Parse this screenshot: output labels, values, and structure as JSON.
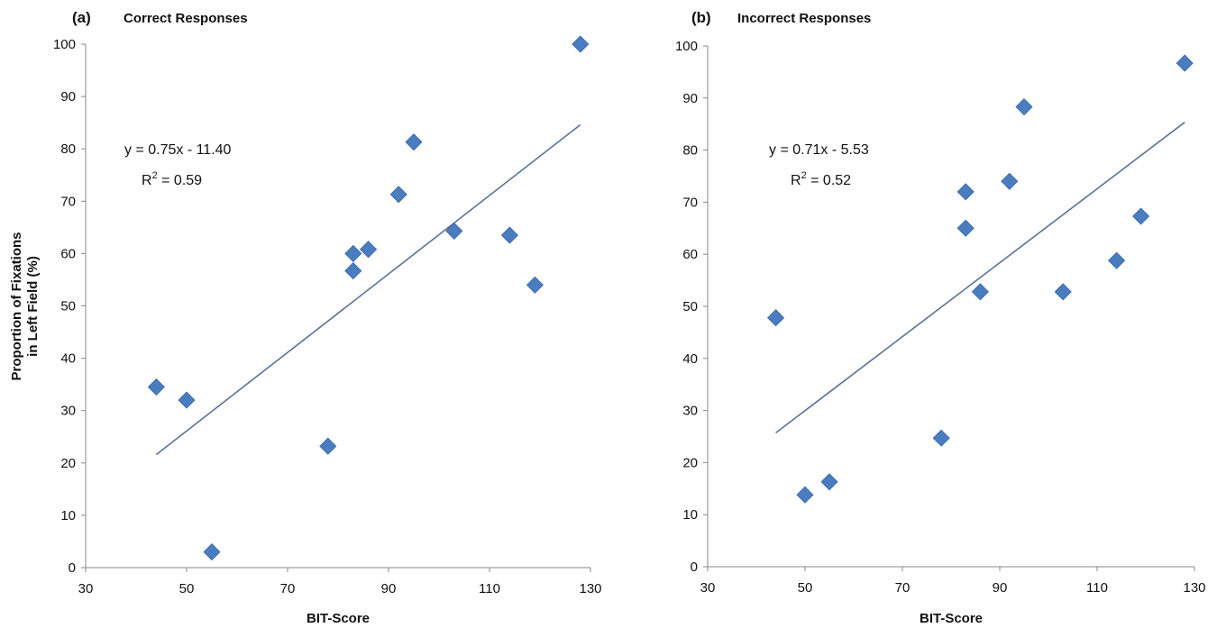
{
  "chart_data": [
    {
      "type": "scatter",
      "panel_label": "(a)",
      "title": "Correct Responses",
      "xlabel": "BIT-Score",
      "ylabel": [
        "Proportion of Fixations",
        "in Left Field (%)"
      ],
      "xlim": [
        30,
        130
      ],
      "ylim": [
        0,
        100
      ],
      "xticks": [
        "30",
        "50",
        "70",
        "90",
        "110",
        "130"
      ],
      "yticks": [
        "0",
        "10",
        "20",
        "30",
        "40",
        "50",
        "60",
        "70",
        "80",
        "90",
        "100"
      ],
      "trendline": {
        "slope": 0.75,
        "intercept": -11.4,
        "x_range": [
          44,
          128
        ]
      },
      "equation": "y = 0.75x - 11.40",
      "r2_prefix": "R",
      "r2_sup": "2",
      "r2_value": " = 0.59",
      "points": [
        {
          "x": 44,
          "y": 34.5
        },
        {
          "x": 50,
          "y": 32
        },
        {
          "x": 55,
          "y": 3
        },
        {
          "x": 78,
          "y": 23.2
        },
        {
          "x": 83,
          "y": 60
        },
        {
          "x": 83,
          "y": 56.7
        },
        {
          "x": 86,
          "y": 60.8
        },
        {
          "x": 92,
          "y": 71.3
        },
        {
          "x": 95,
          "y": 81.3
        },
        {
          "x": 103,
          "y": 64.3
        },
        {
          "x": 114,
          "y": 63.5
        },
        {
          "x": 119,
          "y": 54
        },
        {
          "x": 128,
          "y": 100
        }
      ]
    },
    {
      "type": "scatter",
      "panel_label": "(b)",
      "title": "Incorrect Responses",
      "xlabel": "BIT-Score",
      "ylabel": [],
      "xlim": [
        30,
        130
      ],
      "ylim": [
        0,
        100
      ],
      "xticks": [
        "30",
        "50",
        "70",
        "90",
        "110",
        "130"
      ],
      "yticks": [
        "0",
        "10",
        "20",
        "30",
        "40",
        "50",
        "60",
        "70",
        "80",
        "90",
        "100"
      ],
      "trendline": {
        "slope": 0.71,
        "intercept": -5.53,
        "x_range": [
          44,
          128
        ]
      },
      "equation": "y = 0.71x - 5.53",
      "r2_prefix": "R",
      "r2_sup": "2",
      "r2_value": " = 0.52",
      "points": [
        {
          "x": 44,
          "y": 47.8
        },
        {
          "x": 50,
          "y": 13.8
        },
        {
          "x": 55,
          "y": 16.3
        },
        {
          "x": 78,
          "y": 24.7
        },
        {
          "x": 83,
          "y": 72
        },
        {
          "x": 83,
          "y": 65
        },
        {
          "x": 86,
          "y": 52.8
        },
        {
          "x": 92,
          "y": 74
        },
        {
          "x": 95,
          "y": 88.3
        },
        {
          "x": 103,
          "y": 52.8
        },
        {
          "x": 114,
          "y": 58.8
        },
        {
          "x": 119,
          "y": 67.3
        },
        {
          "x": 128,
          "y": 96.7
        }
      ]
    }
  ]
}
